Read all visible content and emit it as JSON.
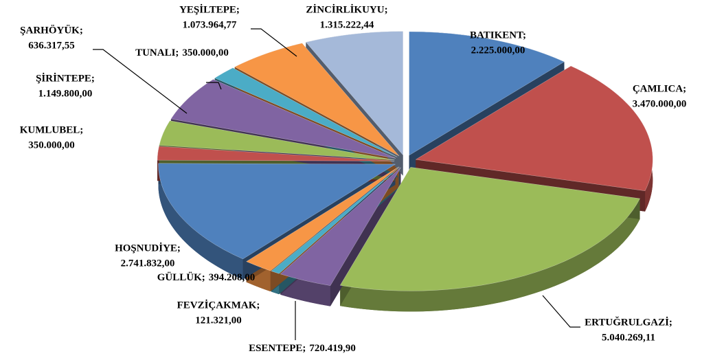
{
  "chart_data": {
    "type": "pie",
    "categories": [
      "BATIKENT;",
      "ÇAMLICA;",
      "ERTUĞRULGAZİ;",
      "ESENTEPE;",
      "FEVZİÇAKMAK;",
      "GÜLLÜK;",
      "HOŞNUDİYE;",
      "KUMLUBEL;",
      "ŞARHÖYÜK;",
      "ŞİRİNTEPE;",
      "TUNALI;",
      "YEŞİLTEPE;",
      "ZİNCİRLİKUYU;"
    ],
    "values": [
      2225000,
      3470000,
      5040269.11,
      720419.9,
      121321,
      394208,
      2741832,
      350000,
      636317.55,
      1149800,
      350000,
      1073964.77,
      1315222.44
    ],
    "value_labels": [
      "2.225.000,00",
      "3.470.000,00",
      "5.040.269,11",
      "720.419,90",
      "121.321,00",
      "394.208,00",
      "2.741.832,00",
      "350.000,00",
      "636.317,55",
      "1.149.800,00",
      "350.000,00",
      "1.073.964,77",
      "1.315.222,44"
    ],
    "colors": [
      "#4f81bd",
      "#c0504d",
      "#9bbb59",
      "#8064a2",
      "#4bacc6",
      "#f79646",
      "#4f81bd",
      "#c0504d",
      "#9bbb59",
      "#8064a2",
      "#4bacc6",
      "#f79646",
      "#a5b9d9"
    ]
  }
}
